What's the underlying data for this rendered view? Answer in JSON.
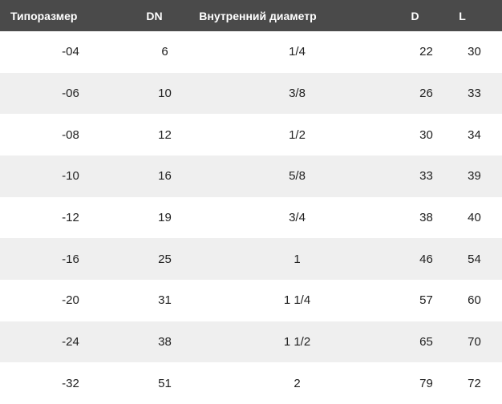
{
  "chart_data": {
    "type": "table",
    "columns": [
      "Типоразмер",
      "DN",
      "Внутренний диаметр",
      "D",
      "L"
    ],
    "rows": [
      [
        "-04",
        "6",
        "1/4",
        "22",
        "30"
      ],
      [
        "-06",
        "10",
        "3/8",
        "26",
        "33"
      ],
      [
        "-08",
        "12",
        "1/2",
        "30",
        "34"
      ],
      [
        "-10",
        "16",
        "5/8",
        "33",
        "39"
      ],
      [
        "-12",
        "19",
        "3/4",
        "38",
        "40"
      ],
      [
        "-16",
        "25",
        "1",
        "46",
        "54"
      ],
      [
        "-20",
        "31",
        "1 1/4",
        "57",
        "60"
      ],
      [
        "-24",
        "38",
        "1 1/2",
        "65",
        "70"
      ],
      [
        "-32",
        "51",
        "2",
        "79",
        "72"
      ]
    ],
    "layout": {
      "header_position": "top",
      "zebra_striping": true,
      "grid_lines": false
    }
  },
  "colors": {
    "header_bg": "#4a4a4a",
    "header_text": "#ffffff",
    "row_bg": "#ffffff",
    "zebra_row_bg": "#efefef",
    "body_text": "#212121"
  }
}
